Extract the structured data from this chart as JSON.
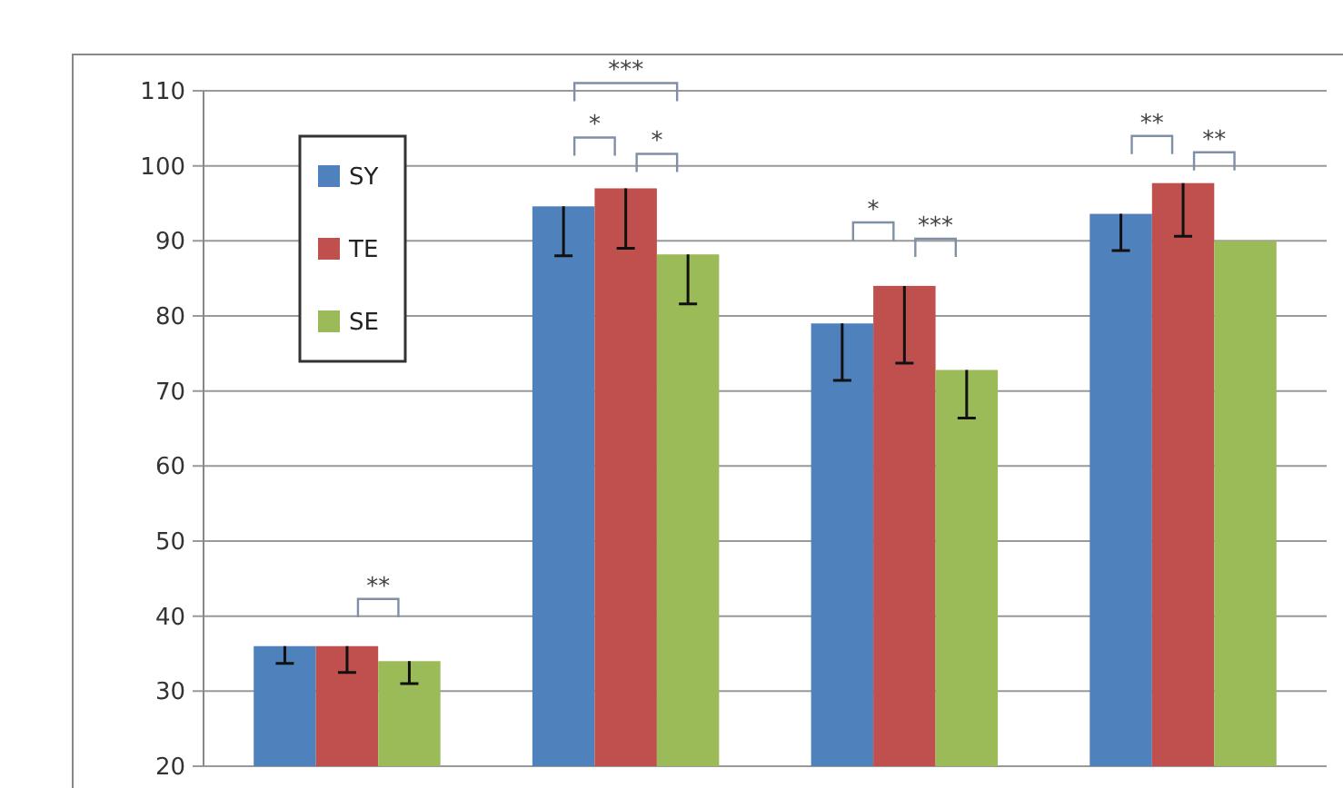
{
  "chart_data": {
    "type": "bar",
    "categories": [
      null,
      null,
      null,
      null
    ],
    "series": [
      {
        "name": "SY",
        "color": "#4f81bd",
        "values": [
          36,
          94.6,
          79,
          93.6
        ],
        "errors": [
          [
            33.7,
            36
          ],
          [
            88,
            94.6
          ],
          [
            71.4,
            79
          ],
          [
            88.7,
            93.6
          ]
        ]
      },
      {
        "name": "TE",
        "color": "#c0504d",
        "values": [
          36,
          97,
          84,
          97.7
        ],
        "errors": [
          [
            32.5,
            36
          ],
          [
            89,
            97
          ],
          [
            73.7,
            84
          ],
          [
            90.6,
            97.7
          ]
        ]
      },
      {
        "name": "SE",
        "color": "#9bbb59",
        "values": [
          34,
          88.2,
          72.8,
          90
        ],
        "errors": [
          [
            31,
            34
          ],
          [
            81.6,
            88.2
          ],
          [
            66.4,
            72.8
          ],
          null
        ]
      }
    ],
    "ylim": [
      20,
      110
    ],
    "yticks": [
      20,
      30,
      40,
      50,
      60,
      70,
      80,
      90,
      100,
      110
    ],
    "grid": "y",
    "legend": "top left",
    "annotations": [
      "**",
      "***",
      "*",
      "*",
      "*",
      "***",
      "**",
      "**"
    ]
  }
}
